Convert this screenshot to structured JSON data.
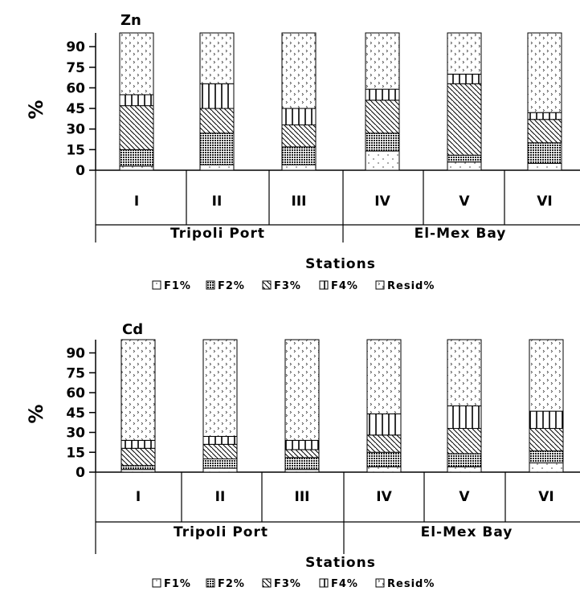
{
  "chart_data": [
    {
      "type": "bar",
      "stacked": true,
      "title": "Zn",
      "ylabel": "%",
      "xlabel": "Stations",
      "ylim": [
        0,
        100
      ],
      "yticks": [
        0,
        15,
        30,
        45,
        60,
        75,
        90
      ],
      "categories": [
        "I",
        "II",
        "III",
        "IV",
        "V",
        "VI"
      ],
      "groups": [
        {
          "label": "Tripoli Port",
          "categories": [
            "I",
            "II",
            "III"
          ]
        },
        {
          "label": "El-Mex Bay",
          "categories": [
            "IV",
            "V",
            "VI"
          ]
        }
      ],
      "series": [
        {
          "name": "F1%",
          "values": [
            3,
            4,
            4,
            14,
            6,
            5
          ]
        },
        {
          "name": "F2%",
          "values": [
            12,
            23,
            13,
            13,
            5,
            15
          ]
        },
        {
          "name": "F3%",
          "values": [
            32,
            18,
            16,
            24,
            52,
            17
          ]
        },
        {
          "name": "F4%",
          "values": [
            8,
            18,
            12,
            8,
            7,
            5
          ]
        },
        {
          "name": "Resid%",
          "values": [
            45,
            37,
            55,
            41,
            30,
            58
          ]
        }
      ],
      "legend_position": "bottom",
      "grid": false
    },
    {
      "type": "bar",
      "stacked": true,
      "title": "Cd",
      "ylabel": "%",
      "xlabel": "Stations",
      "ylim": [
        0,
        100
      ],
      "yticks": [
        0,
        15,
        30,
        45,
        60,
        75,
        90
      ],
      "categories": [
        "I",
        "II",
        "III",
        "IV",
        "V",
        "VI"
      ],
      "groups": [
        {
          "label": "Tripoli Port",
          "categories": [
            "I",
            "II",
            "III"
          ]
        },
        {
          "label": "El-Mex Bay",
          "categories": [
            "IV",
            "V",
            "VI"
          ]
        }
      ],
      "series": [
        {
          "name": "F1%",
          "values": [
            2,
            3,
            2,
            4,
            4,
            7
          ]
        },
        {
          "name": "F2%",
          "values": [
            3,
            7,
            9,
            11,
            10,
            9
          ]
        },
        {
          "name": "F3%",
          "values": [
            13,
            11,
            6,
            13,
            19,
            17
          ]
        },
        {
          "name": "F4%",
          "values": [
            6,
            6,
            7,
            16,
            17,
            13
          ]
        },
        {
          "name": "Resid%",
          "values": [
            76,
            73,
            76,
            56,
            50,
            54
          ]
        }
      ],
      "legend_position": "bottom",
      "grid": false
    }
  ]
}
